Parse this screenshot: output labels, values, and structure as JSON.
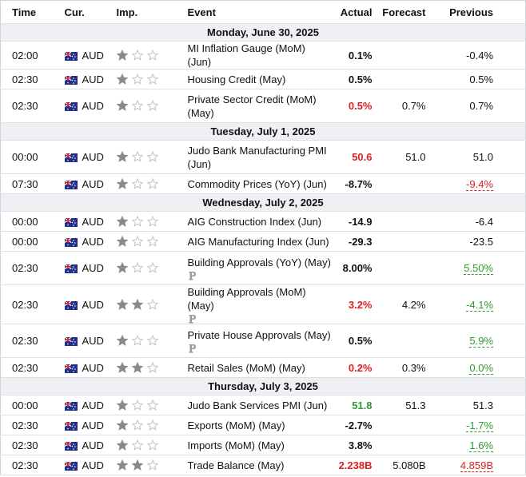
{
  "header": {
    "time": "Time",
    "currency": "Cur.",
    "importance": "Imp.",
    "event": "Event",
    "actual": "Actual",
    "forecast": "Forecast",
    "previous": "Previous"
  },
  "colors": {
    "black": "#111111",
    "red": "#dd1f1f",
    "green": "#2f9a2f"
  },
  "days": [
    {
      "date": "Monday, June 30, 2025",
      "events": [
        {
          "time": "02:00",
          "currency": "AUD",
          "importance": 1,
          "event": "MI Inflation Gauge (MoM) (Jun)",
          "actual": "0.1%",
          "actual_color": "black",
          "previous": "-0.4%",
          "previous_color": "black"
        },
        {
          "time": "02:30",
          "currency": "AUD",
          "importance": 1,
          "event": "Housing Credit (May)",
          "actual": "0.5%",
          "actual_color": "black",
          "previous": "0.5%",
          "previous_color": "black"
        },
        {
          "time": "02:30",
          "currency": "AUD",
          "importance": 1,
          "event": "Private Sector Credit (MoM) (May)",
          "actual": "0.5%",
          "actual_color": "red",
          "forecast": "0.7%",
          "previous": "0.7%",
          "previous_color": "black"
        }
      ]
    },
    {
      "date": "Tuesday, July 1, 2025",
      "events": [
        {
          "time": "00:00",
          "currency": "AUD",
          "importance": 1,
          "event": "Judo Bank Manufacturing PMI (Jun)",
          "actual": "50.6",
          "actual_color": "red",
          "forecast": "51.0",
          "previous": "51.0",
          "previous_color": "black"
        },
        {
          "time": "07:30",
          "currency": "AUD",
          "importance": 1,
          "event": "Commodity Prices (YoY) (Jun)",
          "actual": "-8.7%",
          "actual_color": "black",
          "previous": "-9.4%",
          "previous_color": "red"
        }
      ]
    },
    {
      "date": "Wednesday, July 2, 2025",
      "events": [
        {
          "time": "00:00",
          "currency": "AUD",
          "importance": 1,
          "event": "AIG Construction Index (Jun)",
          "actual": "-14.9",
          "actual_color": "black",
          "previous": "-6.4",
          "previous_color": "black"
        },
        {
          "time": "00:00",
          "currency": "AUD",
          "importance": 1,
          "event": "AIG Manufacturing Index (Jun)",
          "actual": "-29.3",
          "actual_color": "black",
          "previous": "-23.5",
          "previous_color": "black"
        },
        {
          "time": "02:30",
          "currency": "AUD",
          "importance": 1,
          "event": "Building Approvals (YoY) (May)",
          "preliminary": true,
          "actual": "8.00%",
          "actual_color": "black",
          "previous": "5.50%",
          "previous_color": "green"
        },
        {
          "time": "02:30",
          "currency": "AUD",
          "importance": 2,
          "event": "Building Approvals (MoM) (May)",
          "preliminary": true,
          "actual": "3.2%",
          "actual_color": "red",
          "forecast": "4.2%",
          "previous": "-4.1%",
          "previous_color": "green"
        },
        {
          "time": "02:30",
          "currency": "AUD",
          "importance": 1,
          "event": "Private House Approvals (May)",
          "preliminary": true,
          "actual": "0.5%",
          "actual_color": "black",
          "previous": "5.9%",
          "previous_color": "green"
        },
        {
          "time": "02:30",
          "currency": "AUD",
          "importance": 2,
          "event": "Retail Sales (MoM) (May)",
          "actual": "0.2%",
          "actual_color": "red",
          "forecast": "0.3%",
          "previous": "0.0%",
          "previous_color": "green"
        }
      ]
    },
    {
      "date": "Thursday, July 3, 2025",
      "events": [
        {
          "time": "00:00",
          "currency": "AUD",
          "importance": 1,
          "event": "Judo Bank Services PMI (Jun)",
          "actual": "51.8",
          "actual_color": "green",
          "forecast": "51.3",
          "previous": "51.3",
          "previous_color": "black"
        },
        {
          "time": "02:30",
          "currency": "AUD",
          "importance": 1,
          "event": "Exports (MoM) (May)",
          "actual": "-2.7%",
          "actual_color": "black",
          "previous": "-1.7%",
          "previous_color": "green"
        },
        {
          "time": "02:30",
          "currency": "AUD",
          "importance": 1,
          "event": "Imports (MoM) (May)",
          "actual": "3.8%",
          "actual_color": "black",
          "previous": "1.6%",
          "previous_color": "green"
        },
        {
          "time": "02:30",
          "currency": "AUD",
          "importance": 2,
          "event": "Trade Balance (May)",
          "actual": "2.238B",
          "actual_color": "red",
          "forecast": "5.080B",
          "previous": "4.859B",
          "previous_color": "red"
        }
      ]
    }
  ]
}
